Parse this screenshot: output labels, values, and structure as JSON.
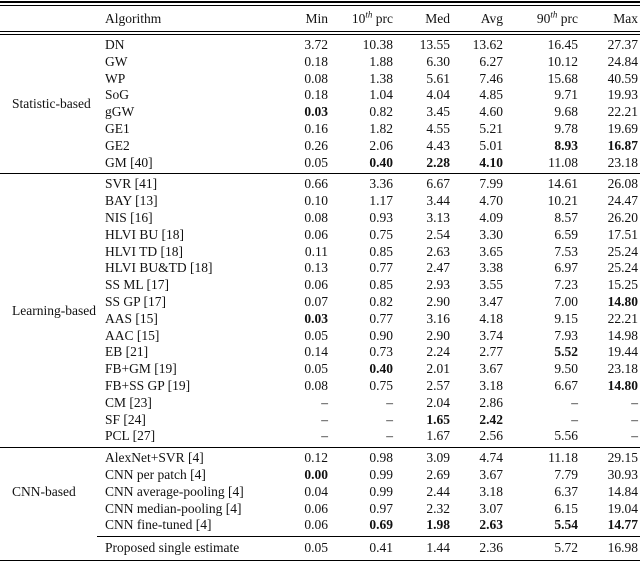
{
  "table": {
    "header": {
      "cols": [
        {
          "base": "Algorithm",
          "sup": "",
          "rest": ""
        },
        {
          "base": "Min",
          "sup": "",
          "rest": ""
        },
        {
          "base": "10",
          "sup": "th",
          "rest": " prc"
        },
        {
          "base": "Med",
          "sup": "",
          "rest": ""
        },
        {
          "base": "Avg",
          "sup": "",
          "rest": ""
        },
        {
          "base": "90",
          "sup": "th",
          "rest": " prc"
        },
        {
          "base": "Max",
          "sup": "",
          "rest": ""
        }
      ]
    },
    "sections": [
      {
        "label": "Statistic-based",
        "rows": [
          {
            "algorithm": "DN",
            "values": [
              "3.72",
              "10.38",
              "13.55",
              "13.62",
              "16.45",
              "27.37"
            ],
            "bold": [
              0,
              0,
              0,
              0,
              0,
              0
            ]
          },
          {
            "algorithm": "GW",
            "values": [
              "0.18",
              "1.88",
              "6.30",
              "6.27",
              "10.12",
              "24.84"
            ],
            "bold": [
              0,
              0,
              0,
              0,
              0,
              0
            ]
          },
          {
            "algorithm": "WP",
            "values": [
              "0.08",
              "1.38",
              "5.61",
              "7.46",
              "15.68",
              "40.59"
            ],
            "bold": [
              0,
              0,
              0,
              0,
              0,
              0
            ]
          },
          {
            "algorithm": "SoG",
            "values": [
              "0.18",
              "1.04",
              "4.04",
              "4.85",
              "9.71",
              "19.93"
            ],
            "bold": [
              0,
              0,
              0,
              0,
              0,
              0
            ]
          },
          {
            "algorithm": "gGW",
            "values": [
              "0.03",
              "0.82",
              "3.45",
              "4.60",
              "9.68",
              "22.21"
            ],
            "bold": [
              1,
              0,
              0,
              0,
              0,
              0
            ]
          },
          {
            "algorithm": "GE1",
            "values": [
              "0.16",
              "1.82",
              "4.55",
              "5.21",
              "9.78",
              "19.69"
            ],
            "bold": [
              0,
              0,
              0,
              0,
              0,
              0
            ]
          },
          {
            "algorithm": "GE2",
            "values": [
              "0.26",
              "2.06",
              "4.43",
              "5.01",
              "8.93",
              "16.87"
            ],
            "bold": [
              0,
              0,
              0,
              0,
              1,
              1
            ]
          },
          {
            "algorithm": "GM [40]",
            "values": [
              "0.05",
              "0.40",
              "2.28",
              "4.10",
              "11.08",
              "23.18"
            ],
            "bold": [
              0,
              1,
              1,
              1,
              0,
              0
            ]
          }
        ]
      },
      {
        "label": "Learning-based",
        "rows": [
          {
            "algorithm": "SVR [41]",
            "values": [
              "0.66",
              "3.36",
              "6.67",
              "7.99",
              "14.61",
              "26.08"
            ],
            "bold": [
              0,
              0,
              0,
              0,
              0,
              0
            ]
          },
          {
            "algorithm": "BAY [13]",
            "values": [
              "0.10",
              "1.17",
              "3.44",
              "4.70",
              "10.21",
              "24.47"
            ],
            "bold": [
              0,
              0,
              0,
              0,
              0,
              0
            ]
          },
          {
            "algorithm": "NIS [16]",
            "values": [
              "0.08",
              "0.93",
              "3.13",
              "4.09",
              "8.57",
              "26.20"
            ],
            "bold": [
              0,
              0,
              0,
              0,
              0,
              0
            ]
          },
          {
            "algorithm": "HLVI BU [18]",
            "values": [
              "0.06",
              "0.75",
              "2.54",
              "3.30",
              "6.59",
              "17.51"
            ],
            "bold": [
              0,
              0,
              0,
              0,
              0,
              0
            ]
          },
          {
            "algorithm": "HLVI TD [18]",
            "values": [
              "0.11",
              "0.85",
              "2.63",
              "3.65",
              "7.53",
              "25.24"
            ],
            "bold": [
              0,
              0,
              0,
              0,
              0,
              0
            ]
          },
          {
            "algorithm": "HLVI BU&TD [18]",
            "values": [
              "0.13",
              "0.77",
              "2.47",
              "3.38",
              "6.97",
              "25.24"
            ],
            "bold": [
              0,
              0,
              0,
              0,
              0,
              0
            ]
          },
          {
            "algorithm": "SS ML [17]",
            "values": [
              "0.06",
              "0.85",
              "2.93",
              "3.55",
              "7.23",
              "15.25"
            ],
            "bold": [
              0,
              0,
              0,
              0,
              0,
              0
            ]
          },
          {
            "algorithm": "SS GP [17]",
            "values": [
              "0.07",
              "0.82",
              "2.90",
              "3.47",
              "7.00",
              "14.80"
            ],
            "bold": [
              0,
              0,
              0,
              0,
              0,
              1
            ]
          },
          {
            "algorithm": "AAS [15]",
            "values": [
              "0.03",
              "0.77",
              "3.16",
              "4.18",
              "9.15",
              "22.21"
            ],
            "bold": [
              1,
              0,
              0,
              0,
              0,
              0
            ]
          },
          {
            "algorithm": "AAC [15]",
            "values": [
              "0.05",
              "0.90",
              "2.90",
              "3.74",
              "7.93",
              "14.98"
            ],
            "bold": [
              0,
              0,
              0,
              0,
              0,
              0
            ]
          },
          {
            "algorithm": "EB [21]",
            "values": [
              "0.14",
              "0.73",
              "2.24",
              "2.77",
              "5.52",
              "19.44"
            ],
            "bold": [
              0,
              0,
              0,
              0,
              1,
              0
            ]
          },
          {
            "algorithm": "FB+GM [19]",
            "values": [
              "0.05",
              "0.40",
              "2.01",
              "3.67",
              "9.50",
              "23.18"
            ],
            "bold": [
              0,
              1,
              0,
              0,
              0,
              0
            ]
          },
          {
            "algorithm": "FB+SS GP [19]",
            "values": [
              "0.08",
              "0.75",
              "2.57",
              "3.18",
              "6.67",
              "14.80"
            ],
            "bold": [
              0,
              0,
              0,
              0,
              0,
              1
            ]
          },
          {
            "algorithm": "CM [23]",
            "values": [
              "–",
              "–",
              "2.04",
              "2.86",
              "–",
              "–"
            ],
            "bold": [
              0,
              0,
              0,
              0,
              0,
              0
            ]
          },
          {
            "algorithm": "SF [24]",
            "values": [
              "–",
              "–",
              "1.65",
              "2.42",
              "–",
              "–"
            ],
            "bold": [
              0,
              0,
              1,
              1,
              0,
              0
            ]
          },
          {
            "algorithm": "PCL [27]",
            "values": [
              "–",
              "–",
              "1.67",
              "2.56",
              "5.56",
              "–"
            ],
            "bold": [
              0,
              0,
              0,
              0,
              0,
              0
            ]
          }
        ]
      },
      {
        "label": "CNN-based",
        "rows": [
          {
            "algorithm": "AlexNet+SVR [4]",
            "values": [
              "0.12",
              "0.98",
              "3.09",
              "4.74",
              "11.18",
              "29.15"
            ],
            "bold": [
              0,
              0,
              0,
              0,
              0,
              0
            ]
          },
          {
            "algorithm": "CNN per patch [4]",
            "values": [
              "0.00",
              "0.99",
              "2.69",
              "3.67",
              "7.79",
              "30.93"
            ],
            "bold": [
              1,
              0,
              0,
              0,
              0,
              0
            ]
          },
          {
            "algorithm": "CNN average-pooling [4]",
            "values": [
              "0.04",
              "0.99",
              "2.44",
              "3.18",
              "6.37",
              "14.84"
            ],
            "bold": [
              0,
              0,
              0,
              0,
              0,
              0
            ]
          },
          {
            "algorithm": "CNN median-pooling [4]",
            "values": [
              "0.06",
              "0.97",
              "2.32",
              "3.07",
              "6.15",
              "19.04"
            ],
            "bold": [
              0,
              0,
              0,
              0,
              0,
              0
            ]
          },
          {
            "algorithm": "CNN fine-tuned [4]",
            "values": [
              "0.06",
              "0.69",
              "1.98",
              "2.63",
              "5.54",
              "14.77"
            ],
            "bold": [
              0,
              1,
              1,
              1,
              1,
              1
            ]
          }
        ]
      }
    ],
    "footer": {
      "algorithm": "Proposed single estimate",
      "values": [
        "0.05",
        "0.41",
        "1.44",
        "2.36",
        "5.72",
        "16.98"
      ],
      "bold": [
        0,
        0,
        0,
        0,
        0,
        0
      ]
    }
  },
  "colors": {
    "text": "#111111",
    "rule": "#000000",
    "background": "#ffffff"
  }
}
